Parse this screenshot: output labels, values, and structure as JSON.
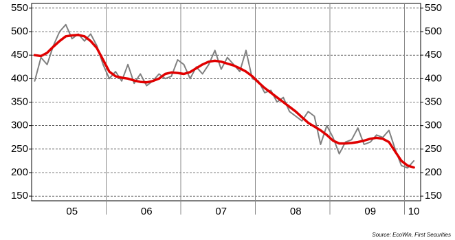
{
  "chart_data": {
    "type": "line",
    "categories": [
      null,
      null,
      null,
      null,
      null,
      null,
      "05",
      null,
      null,
      null,
      null,
      null,
      null,
      null,
      null,
      null,
      null,
      null,
      "06",
      null,
      null,
      null,
      null,
      null,
      null,
      null,
      null,
      null,
      null,
      null,
      "07",
      null,
      null,
      null,
      null,
      null,
      null,
      null,
      null,
      null,
      null,
      null,
      "08",
      null,
      null,
      null,
      null,
      null,
      null,
      null,
      null,
      null,
      null,
      null,
      "09",
      null,
      null,
      null,
      null,
      null,
      null,
      "10"
    ],
    "series": [
      {
        "color": "#808080",
        "values": [
          395,
          445,
          430,
          470,
          500,
          515,
          485,
          495,
          480,
          495,
          470,
          430,
          400,
          415,
          395,
          430,
          390,
          410,
          385,
          395,
          410,
          400,
          405,
          440,
          430,
          400,
          425,
          410,
          430,
          460,
          420,
          445,
          430,
          415,
          460,
          400,
          395,
          370,
          375,
          350,
          360,
          330,
          320,
          310,
          330,
          320,
          260,
          300,
          275,
          240,
          265,
          270,
          295,
          260,
          265,
          280,
          275,
          290,
          250,
          215,
          210,
          225
        ]
      },
      {
        "color": "#e00000",
        "values": [
          450,
          448,
          455,
          468,
          480,
          490,
          492,
          493,
          490,
          480,
          465,
          440,
          415,
          405,
          402,
          400,
          396,
          393,
          392,
          395,
          400,
          410,
          413,
          412,
          410,
          414,
          422,
          430,
          436,
          438,
          436,
          432,
          428,
          422,
          415,
          405,
          392,
          380,
          370,
          360,
          350,
          340,
          330,
          318,
          306,
          298,
          290,
          280,
          268,
          262,
          262,
          263,
          265,
          268,
          272,
          274,
          272,
          265,
          245,
          225,
          215,
          211
        ]
      }
    ],
    "ylim": [
      140,
      560
    ],
    "yticks": [
      150,
      200,
      250,
      300,
      350,
      400,
      450,
      500,
      550
    ],
    "grid": true,
    "source": "Source: EcoWin, First Securities"
  }
}
